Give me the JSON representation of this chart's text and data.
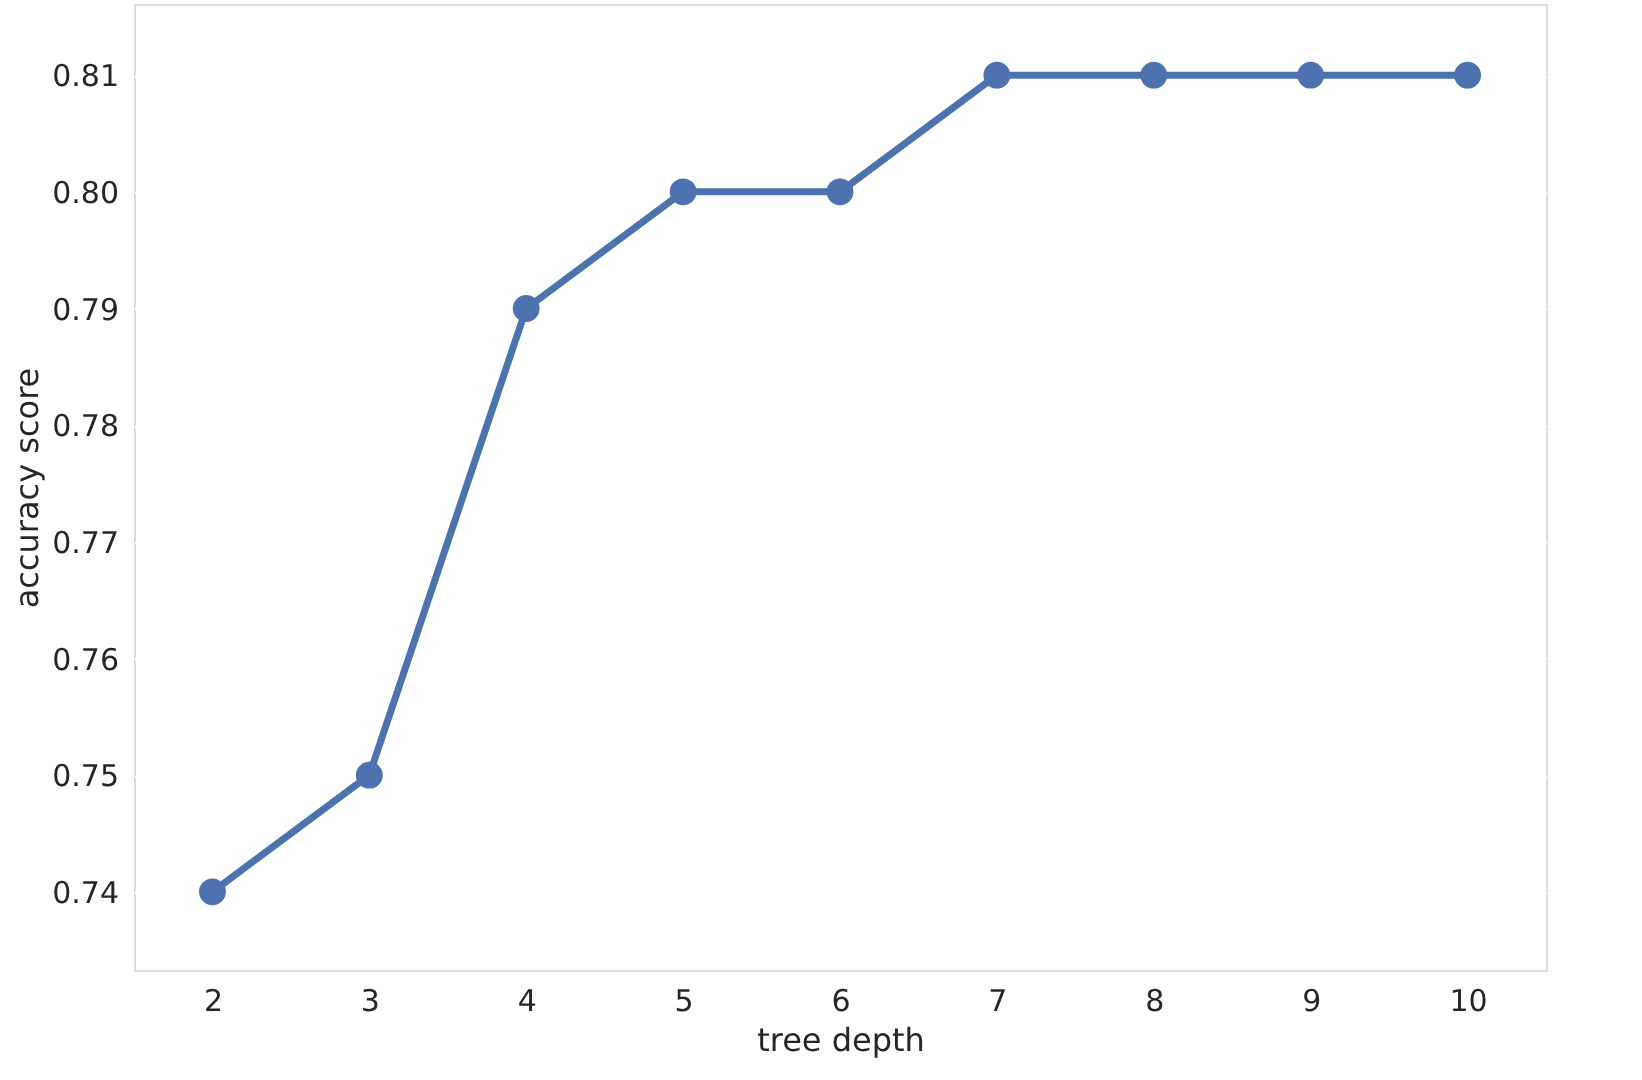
{
  "chart_data": {
    "type": "line",
    "xlabel": "tree depth",
    "ylabel": "accuracy score",
    "categories": [
      "2",
      "3",
      "4",
      "5",
      "6",
      "7",
      "8",
      "9",
      "10"
    ],
    "series": [
      {
        "color": "#4c72b0",
        "values": [
          0.74,
          0.75,
          0.79,
          0.8,
          0.8,
          0.81,
          0.81,
          0.81,
          0.81
        ]
      }
    ],
    "ylim": [
      0.7333,
      0.8161
    ],
    "yticks": [
      {
        "value": 0.74,
        "label": "0.74"
      },
      {
        "value": 0.75,
        "label": "0.75"
      },
      {
        "value": 0.76,
        "label": "0.76"
      },
      {
        "value": 0.77,
        "label": "0.77"
      },
      {
        "value": 0.78,
        "label": "0.78"
      },
      {
        "value": 0.79,
        "label": "0.79"
      },
      {
        "value": 0.8,
        "label": "0.80"
      },
      {
        "value": 0.81,
        "label": "0.81"
      }
    ],
    "grid": "y",
    "marker": "circle",
    "line_style": "solid"
  }
}
